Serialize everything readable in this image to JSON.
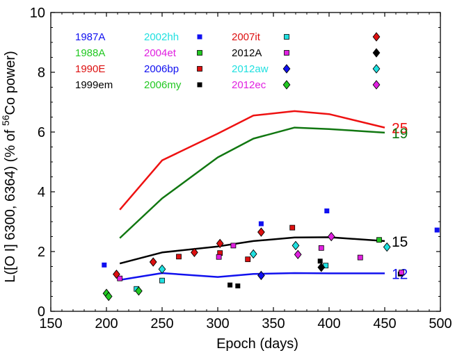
{
  "chart_data": {
    "type": "scatter",
    "xlabel": "Epoch (days)",
    "ylabel_parts": {
      "pre": "L([O I] 6300, 6364) (% of ",
      "sup": "56",
      "post": "Co power)"
    },
    "xlim": [
      150,
      500
    ],
    "ylim": [
      0,
      10
    ],
    "xticks": [
      150,
      200,
      250,
      300,
      350,
      400,
      450,
      500
    ],
    "yticks": [
      0,
      2,
      4,
      6,
      8,
      10
    ],
    "grid": false,
    "legend_position": "top",
    "series": [
      {
        "name": "1987A",
        "color": "#1010f0",
        "marker": "square",
        "points": [
          [
            198,
            1.55
          ],
          [
            339,
            2.93
          ],
          [
            398,
            3.36
          ],
          [
            497,
            2.72
          ]
        ]
      },
      {
        "name": "1988A",
        "color": "#22c822",
        "marker": "square",
        "points": [
          [
            445,
            2.39
          ]
        ]
      },
      {
        "name": "1990E",
        "color": "#dd1010",
        "marker": "square",
        "points": [
          [
            265,
            1.83
          ],
          [
            302,
            1.95
          ],
          [
            327,
            1.74
          ],
          [
            367,
            2.8
          ]
        ]
      },
      {
        "name": "1999em",
        "color": "#000000",
        "marker": "square",
        "points": [
          [
            311,
            0.88
          ],
          [
            318,
            0.85
          ],
          [
            392,
            1.68
          ],
          [
            464,
            1.25
          ]
        ]
      },
      {
        "name": "2002hh",
        "color": "#20e0e0",
        "marker": "square",
        "points": [
          [
            227,
            0.75
          ],
          [
            250,
            1.03
          ],
          [
            397,
            1.53
          ]
        ]
      },
      {
        "name": "2004et",
        "color": "#e020e0",
        "marker": "square",
        "points": [
          [
            212,
            1.1
          ],
          [
            301,
            1.82
          ],
          [
            314,
            2.2
          ],
          [
            393,
            2.12
          ],
          [
            428,
            1.8
          ],
          [
            465,
            1.3
          ]
        ]
      },
      {
        "name": "2006bp",
        "color": "#1010f0",
        "marker": "diamond",
        "points": [
          [
            339,
            1.2
          ]
        ]
      },
      {
        "name": "2006my",
        "color": "#22c822",
        "marker": "diamond",
        "points": [
          [
            200,
            0.6
          ],
          [
            202,
            0.5
          ],
          [
            229,
            0.68
          ]
        ]
      },
      {
        "name": "2007it",
        "color": "#dd1010",
        "marker": "diamond",
        "points": [
          [
            209,
            1.24
          ],
          [
            242,
            1.65
          ],
          [
            279,
            1.97
          ],
          [
            302,
            2.27
          ],
          [
            339,
            2.65
          ]
        ]
      },
      {
        "name": "2012A",
        "color": "#000000",
        "marker": "diamond",
        "points": [
          [
            393,
            1.47
          ]
        ]
      },
      {
        "name": "2012aw",
        "color": "#20e0e0",
        "marker": "diamond",
        "points": [
          [
            250,
            1.41
          ],
          [
            332,
            1.92
          ],
          [
            370,
            2.2
          ],
          [
            452,
            2.15
          ]
        ]
      },
      {
        "name": "2012ec",
        "color": "#e020e0",
        "marker": "diamond",
        "points": [
          [
            372,
            1.9
          ],
          [
            402,
            2.5
          ]
        ]
      }
    ],
    "lines": [
      {
        "label": "25",
        "color": "#ee1111",
        "points": [
          [
            212,
            3.4
          ],
          [
            250,
            5.05
          ],
          [
            300,
            5.95
          ],
          [
            332,
            6.55
          ],
          [
            369,
            6.7
          ],
          [
            400,
            6.6
          ],
          [
            450,
            6.15
          ]
        ]
      },
      {
        "label": "19",
        "color": "#117711",
        "points": [
          [
            212,
            2.45
          ],
          [
            250,
            3.78
          ],
          [
            300,
            5.15
          ],
          [
            332,
            5.78
          ],
          [
            369,
            6.15
          ],
          [
            400,
            6.1
          ],
          [
            450,
            5.98
          ]
        ]
      },
      {
        "label": "15",
        "color": "#000000",
        "points": [
          [
            212,
            1.6
          ],
          [
            250,
            1.97
          ],
          [
            300,
            2.17
          ],
          [
            332,
            2.35
          ],
          [
            369,
            2.47
          ],
          [
            400,
            2.48
          ],
          [
            450,
            2.35
          ]
        ]
      },
      {
        "label": "12",
        "color": "#1111ee",
        "points": [
          [
            212,
            1.05
          ],
          [
            250,
            1.28
          ],
          [
            300,
            1.15
          ],
          [
            332,
            1.25
          ],
          [
            369,
            1.28
          ],
          [
            400,
            1.27
          ],
          [
            450,
            1.27
          ]
        ]
      }
    ]
  }
}
